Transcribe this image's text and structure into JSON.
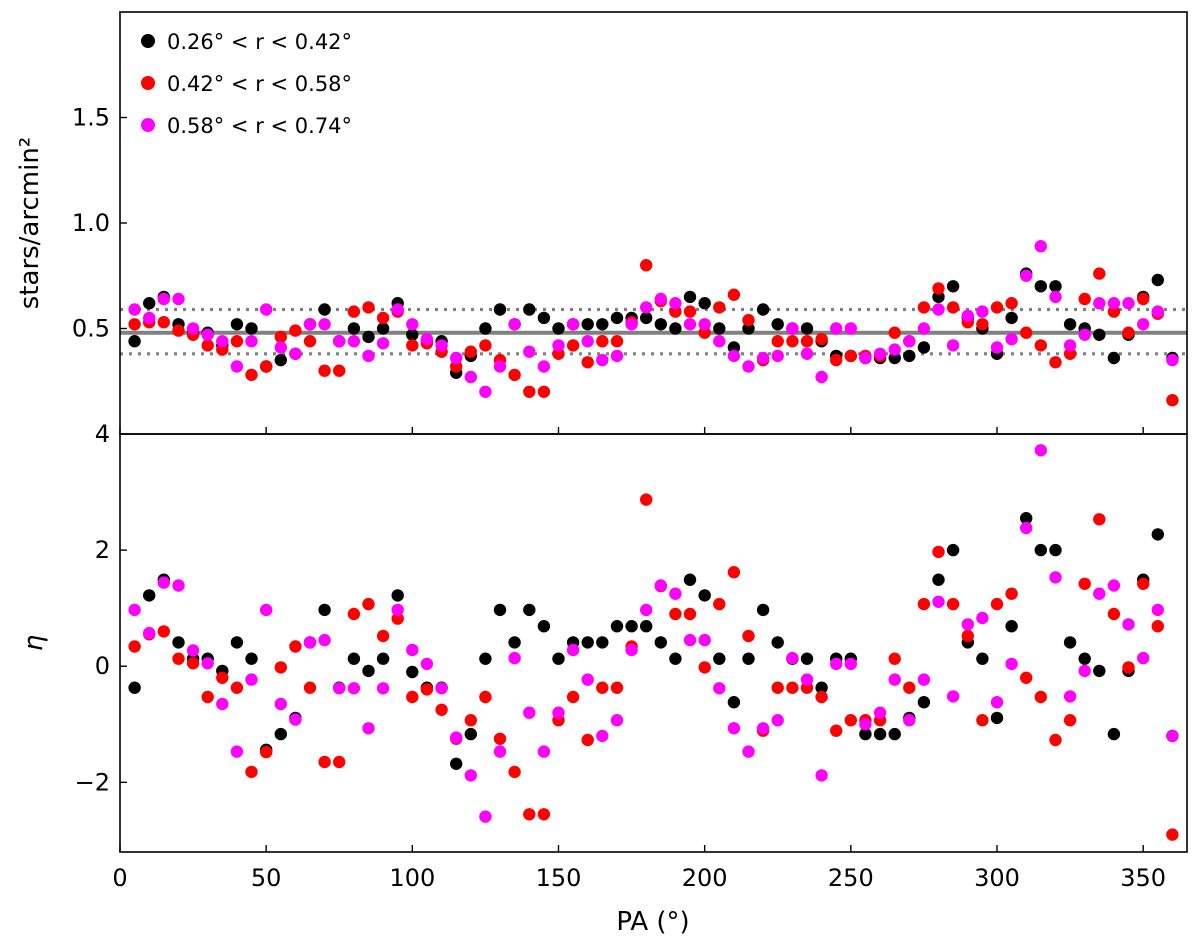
{
  "chart_data": [
    {
      "type": "scatter",
      "panel": "top",
      "xlabel": "",
      "ylabel": "stars/arcmin²",
      "xlim": [
        0,
        365
      ],
      "ylim": [
        0.0,
        2.0
      ],
      "yticks": [
        {
          "value": 0.5,
          "label": "0.5"
        },
        {
          "value": 1.0,
          "label": "1.0"
        },
        {
          "value": 1.5,
          "label": "1.5"
        }
      ],
      "reference_lines": {
        "mean": 0.48,
        "upper": 0.59,
        "lower": 0.38,
        "color": "#808080"
      },
      "legend": {
        "placement": "top-left",
        "entries": [
          {
            "series": 0,
            "label": "0.26° < r < 0.42°"
          },
          {
            "series": 1,
            "label": "0.42° < r < 0.58°"
          },
          {
            "series": 2,
            "label": "0.58° < r < 0.74°"
          }
        ]
      },
      "x": [
        5,
        10,
        15,
        20,
        25,
        30,
        35,
        40,
        45,
        50,
        55,
        60,
        65,
        70,
        75,
        80,
        85,
        90,
        95,
        100,
        105,
        110,
        115,
        120,
        125,
        130,
        135,
        140,
        145,
        150,
        155,
        160,
        165,
        170,
        175,
        180,
        185,
        190,
        195,
        200,
        205,
        210,
        215,
        220,
        225,
        230,
        235,
        240,
        245,
        250,
        255,
        260,
        265,
        270,
        275,
        280,
        285,
        290,
        295,
        300,
        305,
        310,
        315,
        320,
        325,
        330,
        335,
        340,
        345,
        350,
        355,
        360
      ],
      "series": [
        {
          "name": "0.26° < r < 0.42°",
          "color": "#000000",
          "values": [
            0.44,
            0.62,
            0.65,
            0.52,
            0.48,
            0.48,
            0.42,
            0.52,
            0.5,
            0.32,
            0.35,
            0.38,
            0.52,
            0.59,
            0.44,
            0.5,
            0.46,
            0.5,
            0.62,
            0.47,
            0.44,
            0.44,
            0.29,
            0.37,
            0.5,
            0.59,
            0.52,
            0.59,
            0.55,
            0.5,
            0.52,
            0.52,
            0.52,
            0.55,
            0.55,
            0.55,
            0.52,
            0.5,
            0.65,
            0.62,
            0.5,
            0.41,
            0.5,
            0.59,
            0.52,
            0.5,
            0.5,
            0.44,
            0.37,
            0.37,
            0.36,
            0.36,
            0.36,
            0.37,
            0.41,
            0.65,
            0.7,
            0.55,
            0.5,
            0.38,
            0.55,
            0.76,
            0.7,
            0.7,
            0.52,
            0.5,
            0.47,
            0.36,
            0.47,
            0.65,
            0.73,
            0.36
          ]
        },
        {
          "name": "0.42° < r < 0.58°",
          "color": "#ff0000",
          "values": [
            0.52,
            0.53,
            0.53,
            0.49,
            0.47,
            0.42,
            0.4,
            0.44,
            0.28,
            0.32,
            0.46,
            0.49,
            0.44,
            0.3,
            0.3,
            0.58,
            0.6,
            0.55,
            0.58,
            0.42,
            0.43,
            0.39,
            0.32,
            0.39,
            0.42,
            0.35,
            0.28,
            0.2,
            0.2,
            0.38,
            0.42,
            0.34,
            0.44,
            0.44,
            0.53,
            0.8,
            0.63,
            0.58,
            0.58,
            0.48,
            0.6,
            0.66,
            0.54,
            0.35,
            0.44,
            0.44,
            0.44,
            0.45,
            0.35,
            0.37,
            0.37,
            0.37,
            0.48,
            0.44,
            0.6,
            0.69,
            0.6,
            0.53,
            0.52,
            0.6,
            0.62,
            0.48,
            0.42,
            0.34,
            0.38,
            0.64,
            0.76,
            0.58,
            0.48,
            0.64,
            0.57,
            0.16
          ]
        },
        {
          "name": "0.58° < r < 0.74°",
          "color": "#ff00ff",
          "values": [
            0.59,
            0.55,
            0.64,
            0.64,
            0.5,
            0.47,
            0.44,
            0.32,
            0.44,
            0.59,
            0.41,
            0.38,
            0.52,
            0.52,
            0.44,
            0.44,
            0.37,
            0.43,
            0.59,
            0.52,
            0.45,
            0.42,
            0.36,
            0.27,
            0.2,
            0.32,
            0.52,
            0.39,
            0.32,
            0.42,
            0.52,
            0.44,
            0.35,
            0.37,
            0.52,
            0.6,
            0.64,
            0.62,
            0.52,
            0.52,
            0.44,
            0.37,
            0.32,
            0.36,
            0.37,
            0.5,
            0.38,
            0.27,
            0.5,
            0.5,
            0.36,
            0.38,
            0.4,
            0.44,
            0.5,
            0.59,
            0.42,
            0.56,
            0.58,
            0.41,
            0.45,
            0.75,
            0.89,
            0.65,
            0.42,
            0.47,
            0.62,
            0.62,
            0.62,
            0.52,
            0.58,
            0.35
          ]
        }
      ]
    },
    {
      "type": "scatter",
      "panel": "bottom",
      "xlabel": "PA (°)",
      "ylabel": "η",
      "xlim": [
        0,
        365
      ],
      "ylim": [
        -3.2,
        4.0
      ],
      "xticks": [
        {
          "value": 0,
          "label": "0"
        },
        {
          "value": 50,
          "label": "50"
        },
        {
          "value": 100,
          "label": "100"
        },
        {
          "value": 150,
          "label": "150"
        },
        {
          "value": 200,
          "label": "200"
        },
        {
          "value": 250,
          "label": "250"
        },
        {
          "value": 300,
          "label": "300"
        },
        {
          "value": 350,
          "label": "350"
        }
      ],
      "yticks": [
        {
          "value": -2,
          "label": "−2"
        },
        {
          "value": 0,
          "label": "0"
        },
        {
          "value": 2,
          "label": "2"
        },
        {
          "value": 4,
          "label": "4"
        }
      ],
      "x": [
        5,
        10,
        15,
        20,
        25,
        30,
        35,
        40,
        45,
        50,
        55,
        60,
        65,
        70,
        75,
        80,
        85,
        90,
        95,
        100,
        105,
        110,
        115,
        120,
        125,
        130,
        135,
        140,
        145,
        150,
        155,
        160,
        165,
        170,
        175,
        180,
        185,
        190,
        195,
        200,
        205,
        210,
        215,
        220,
        225,
        230,
        235,
        240,
        245,
        250,
        255,
        260,
        265,
        270,
        275,
        280,
        285,
        290,
        295,
        300,
        305,
        310,
        315,
        320,
        325,
        330,
        335,
        340,
        345,
        350,
        355,
        360
      ],
      "series": [
        {
          "name": "0.26° < r < 0.42°",
          "color": "#000000",
          "values": [
            -0.37,
            1.22,
            1.49,
            0.41,
            0.13,
            0.13,
            -0.08,
            0.41,
            0.13,
            -1.44,
            -1.17,
            -0.89,
            0.41,
            0.97,
            -0.37,
            0.13,
            -0.08,
            0.13,
            1.22,
            -0.1,
            -0.37,
            -0.37,
            -1.68,
            -1.17,
            0.13,
            0.97,
            0.41,
            0.97,
            0.69,
            0.13,
            0.41,
            0.41,
            0.41,
            0.69,
            0.69,
            0.69,
            0.41,
            0.13,
            1.49,
            1.22,
            0.13,
            -0.62,
            0.13,
            0.97,
            0.41,
            0.13,
            0.13,
            -0.37,
            0.13,
            0.13,
            -1.17,
            -1.17,
            -1.17,
            -0.89,
            -0.62,
            1.49,
            2.0,
            0.41,
            0.13,
            -0.89,
            0.69,
            2.55,
            2.0,
            2.0,
            0.41,
            0.13,
            -0.08,
            -1.17,
            -0.08,
            1.49,
            2.27,
            -1.2
          ]
        },
        {
          "name": "0.42° < r < 0.58°",
          "color": "#ff0000",
          "values": [
            0.34,
            0.55,
            0.6,
            0.13,
            0.05,
            -0.53,
            -0.2,
            -0.37,
            -1.82,
            -1.48,
            -0.02,
            0.34,
            -0.37,
            -1.65,
            -1.65,
            0.9,
            1.07,
            0.52,
            0.82,
            -0.53,
            -0.4,
            -0.75,
            -1.25,
            -0.93,
            -0.53,
            -1.25,
            -1.82,
            -2.55,
            -2.55,
            -0.93,
            -0.53,
            -1.27,
            -0.37,
            -0.37,
            0.34,
            2.87,
            1.38,
            0.9,
            0.9,
            -0.02,
            1.07,
            1.62,
            0.52,
            -1.11,
            -0.37,
            -0.37,
            -0.37,
            -0.53,
            -1.11,
            -0.93,
            -0.93,
            -0.93,
            0.13,
            -0.37,
            1.07,
            1.97,
            1.07,
            0.52,
            -0.93,
            1.07,
            1.25,
            -0.2,
            -0.53,
            -1.27,
            -0.93,
            1.42,
            2.53,
            0.9,
            -0.02,
            1.42,
            0.69,
            -2.9
          ]
        },
        {
          "name": "0.58° < r < 0.74°",
          "color": "#ff00ff",
          "values": [
            0.97,
            0.57,
            1.44,
            1.39,
            0.27,
            0.05,
            -0.65,
            -1.47,
            -0.23,
            0.97,
            -0.65,
            -0.92,
            0.41,
            0.45,
            -0.38,
            -0.38,
            -1.07,
            -0.38,
            0.97,
            0.28,
            0.04,
            -0.38,
            -1.23,
            -1.88,
            -2.59,
            -1.47,
            0.14,
            -0.8,
            -1.47,
            -0.8,
            0.28,
            -0.23,
            -1.2,
            -0.93,
            0.28,
            0.97,
            1.39,
            1.25,
            0.45,
            0.45,
            -0.38,
            -1.07,
            -1.47,
            -1.07,
            -0.93,
            0.14,
            -0.23,
            -1.88,
            0.04,
            0.04,
            -1.0,
            -0.8,
            -0.23,
            -0.93,
            -0.23,
            1.11,
            -0.52,
            0.72,
            0.83,
            -0.62,
            0.04,
            2.38,
            3.72,
            1.53,
            -0.52,
            -0.08,
            1.25,
            1.39,
            0.72,
            0.14,
            0.97,
            -1.2
          ]
        }
      ]
    }
  ]
}
